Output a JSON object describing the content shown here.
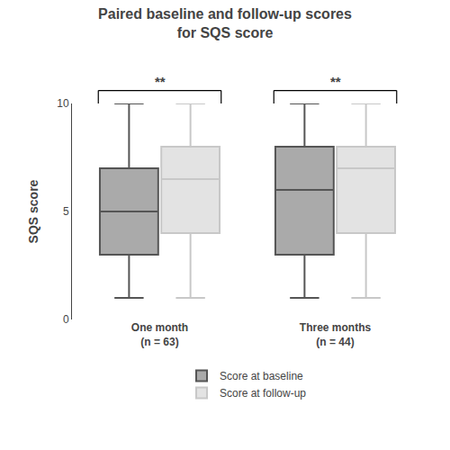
{
  "chart_data": {
    "type": "box",
    "title": "Paired baseline and follow-up scores\nfor SQS score",
    "ylabel": "SQS score",
    "categories": [
      "One month\n(n = 63)",
      "Three months\n(n = 44)"
    ],
    "series": [
      {
        "name": "Score at baseline",
        "color": "#555555",
        "values": [
          {
            "min": 1,
            "q1": 3,
            "median": 5,
            "q3": 7,
            "max": 10
          },
          {
            "min": 1,
            "q1": 3,
            "median": 6,
            "q3": 8,
            "max": 10
          }
        ]
      },
      {
        "name": "Score at follow-up",
        "color": "#c8c8c8",
        "values": [
          {
            "min": 1,
            "q1": 4,
            "median": 6.5,
            "q3": 8,
            "max": 10
          },
          {
            "min": 1,
            "q1": 4,
            "median": 7,
            "q3": 8,
            "max": 10
          }
        ]
      }
    ],
    "annotations": [
      {
        "x": "One month\n(n = 63)",
        "text": "**"
      },
      {
        "x": "Three months\n(n = 44)",
        "text": "**"
      }
    ],
    "ylim": [
      0,
      10
    ],
    "yticks": [
      0,
      5,
      10
    ],
    "grid": false,
    "legend": "bottom"
  }
}
